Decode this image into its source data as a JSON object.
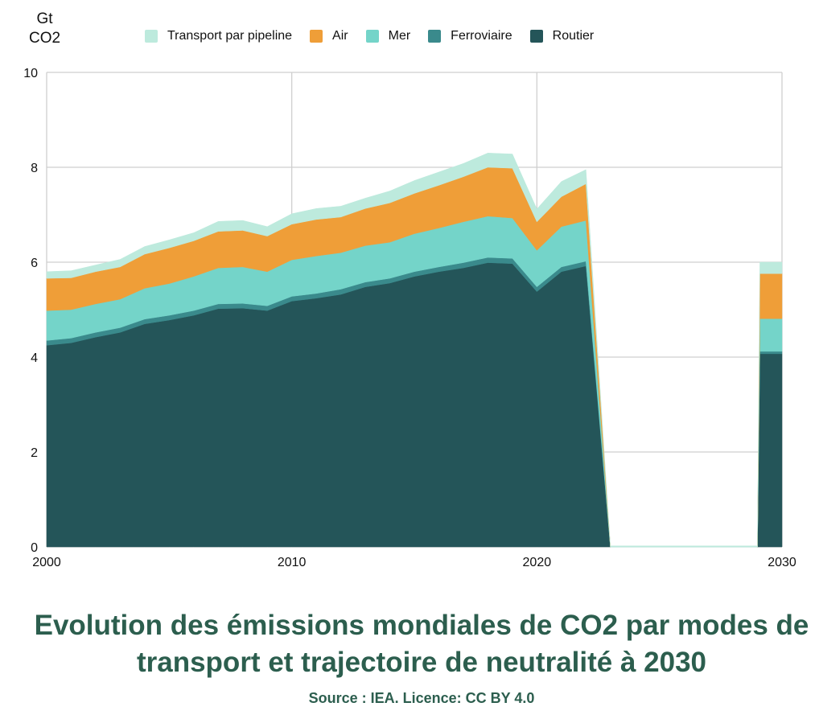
{
  "chart_data": {
    "type": "area",
    "stacked": true,
    "title": "Evolution des émissions mondiales de CO2 par modes de transport et trajectoire de neutralité à 2030",
    "source": "Source :  IEA. Licence: CC BY 4.0",
    "ylabel": [
      "Gt",
      "CO2"
    ],
    "xlabel": "",
    "xlim": [
      2000,
      2030
    ],
    "ylim": [
      0,
      10
    ],
    "x_ticks": [
      "2000",
      "2010",
      "2020",
      "2030"
    ],
    "y_ticks": [
      "0",
      "2",
      "4",
      "6",
      "8",
      "10"
    ],
    "grid": true,
    "legend_position": "top",
    "x": [
      2000,
      2001,
      2002,
      2003,
      2004,
      2005,
      2006,
      2007,
      2008,
      2009,
      2010,
      2011,
      2012,
      2013,
      2014,
      2015,
      2016,
      2017,
      2018,
      2019,
      2020,
      2021,
      2022,
      2023,
      2024,
      2025,
      2026,
      2027,
      2028,
      2029,
      2030
    ],
    "series": [
      {
        "name": "Routier",
        "color": "#245559",
        "values": [
          4.25,
          4.3,
          4.42,
          4.52,
          4.7,
          4.78,
          4.88,
          5.02,
          5.03,
          4.98,
          5.18,
          5.24,
          5.32,
          5.48,
          5.56,
          5.7,
          5.8,
          5.88,
          5.99,
          5.97,
          5.38,
          5.8,
          5.92,
          0,
          0,
          0,
          0,
          0,
          0,
          0,
          4.07
        ]
      },
      {
        "name": "Ferroviaire",
        "color": "#3a8a8c",
        "values": [
          0.1,
          0.1,
          0.1,
          0.1,
          0.1,
          0.1,
          0.1,
          0.1,
          0.1,
          0.1,
          0.1,
          0.1,
          0.11,
          0.1,
          0.1,
          0.1,
          0.1,
          0.11,
          0.11,
          0.11,
          0.1,
          0.1,
          0.1,
          0,
          0,
          0,
          0,
          0,
          0,
          0,
          0.05
        ]
      },
      {
        "name": "Mer",
        "color": "#74d4c9",
        "values": [
          0.63,
          0.6,
          0.6,
          0.6,
          0.65,
          0.67,
          0.72,
          0.76,
          0.77,
          0.72,
          0.77,
          0.79,
          0.77,
          0.77,
          0.76,
          0.8,
          0.82,
          0.86,
          0.87,
          0.85,
          0.77,
          0.85,
          0.86,
          0,
          0,
          0,
          0,
          0,
          0,
          0,
          0.69
        ]
      },
      {
        "name": "Air",
        "color": "#ef9e38",
        "values": [
          0.68,
          0.67,
          0.68,
          0.68,
          0.72,
          0.75,
          0.75,
          0.77,
          0.77,
          0.75,
          0.75,
          0.77,
          0.75,
          0.78,
          0.83,
          0.85,
          0.9,
          0.95,
          1.03,
          1.05,
          0.6,
          0.63,
          0.77,
          0,
          0,
          0,
          0,
          0,
          0,
          0,
          0.95
        ]
      },
      {
        "name": "Transport par pipeline",
        "color": "#bdeadd",
        "values": [
          0.14,
          0.15,
          0.14,
          0.16,
          0.16,
          0.17,
          0.17,
          0.21,
          0.21,
          0.2,
          0.22,
          0.23,
          0.23,
          0.22,
          0.25,
          0.27,
          0.28,
          0.28,
          0.3,
          0.3,
          0.27,
          0.32,
          0.3,
          0,
          0,
          0,
          0,
          0,
          0,
          0,
          0.24
        ]
      }
    ],
    "legend_order": [
      "Transport par pipeline",
      "Air",
      "Mer",
      "Ferroviaire",
      "Routier"
    ]
  }
}
